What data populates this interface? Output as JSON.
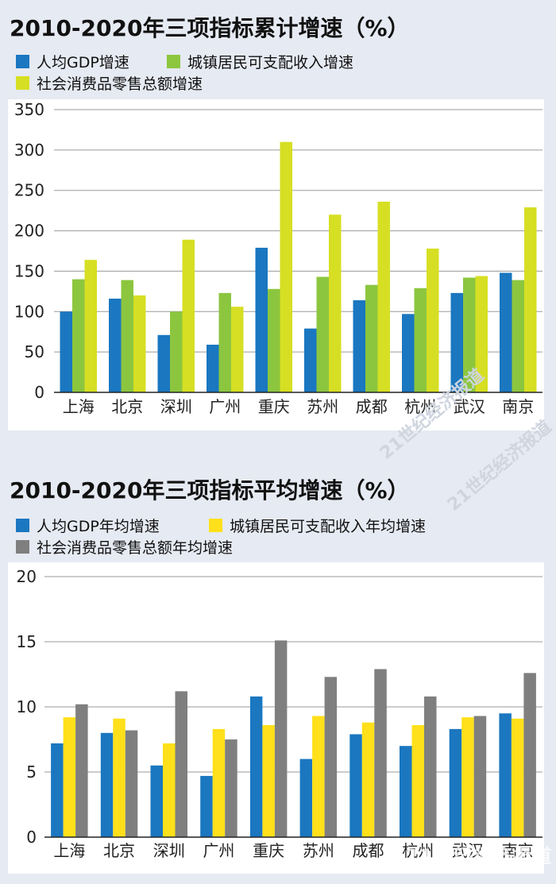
{
  "chart_data": [
    {
      "type": "bar",
      "title": "2010-2020年三项指标累计增速（%）",
      "categories": [
        "上海",
        "北京",
        "深圳",
        "广州",
        "重庆",
        "苏州",
        "成都",
        "杭州",
        "武汉",
        "南京"
      ],
      "series": [
        {
          "name": "人均GDP增速",
          "color": "#1a77c0",
          "values": [
            100,
            116,
            71,
            59,
            179,
            79,
            114,
            97,
            123,
            148
          ]
        },
        {
          "name": "城镇居民可支配收入增速",
          "color": "#8cc63f",
          "values": [
            140,
            139,
            100,
            123,
            128,
            143,
            133,
            129,
            142,
            139
          ]
        },
        {
          "name": "社会消费品零售总额增速",
          "color": "#d6df23",
          "values": [
            164,
            120,
            189,
            106,
            310,
            220,
            236,
            178,
            144,
            229
          ]
        }
      ],
      "ylim": [
        0,
        350
      ],
      "yticks": [
        0,
        50,
        100,
        150,
        200,
        250,
        300,
        350
      ],
      "grid": true,
      "legend_placement": "top-left"
    },
    {
      "type": "bar",
      "title": "2010-2020年三项指标平均增速（%）",
      "categories": [
        "上海",
        "北京",
        "深圳",
        "广州",
        "重庆",
        "苏州",
        "成都",
        "杭州",
        "武汉",
        "南京"
      ],
      "series": [
        {
          "name": "人均GDP年均增速",
          "color": "#1a77c0",
          "values": [
            7.2,
            8.0,
            5.5,
            4.7,
            10.8,
            6.0,
            7.9,
            7.0,
            8.3,
            9.5
          ]
        },
        {
          "name": "城镇居民可支配收入年均增速",
          "color": "#ffe01a",
          "values": [
            9.2,
            9.1,
            7.2,
            8.3,
            8.6,
            9.3,
            8.8,
            8.6,
            9.2,
            9.1
          ]
        },
        {
          "name": "社会消费品零售总额年均增速",
          "color": "#7f7f7f",
          "values": [
            10.2,
            8.2,
            11.2,
            7.5,
            15.1,
            12.3,
            12.9,
            10.8,
            9.3,
            12.6
          ]
        }
      ],
      "ylim": [
        0,
        20
      ],
      "yticks": [
        0,
        5,
        10,
        15,
        20
      ],
      "grid": true,
      "legend_placement": "top-left"
    }
  ],
  "watermark": {
    "mid_text": "21世纪经济报道",
    "corner_text": "21世纪经济报道",
    "corner_subtext": "21ST CENTURY BUSINESS HERALD"
  }
}
